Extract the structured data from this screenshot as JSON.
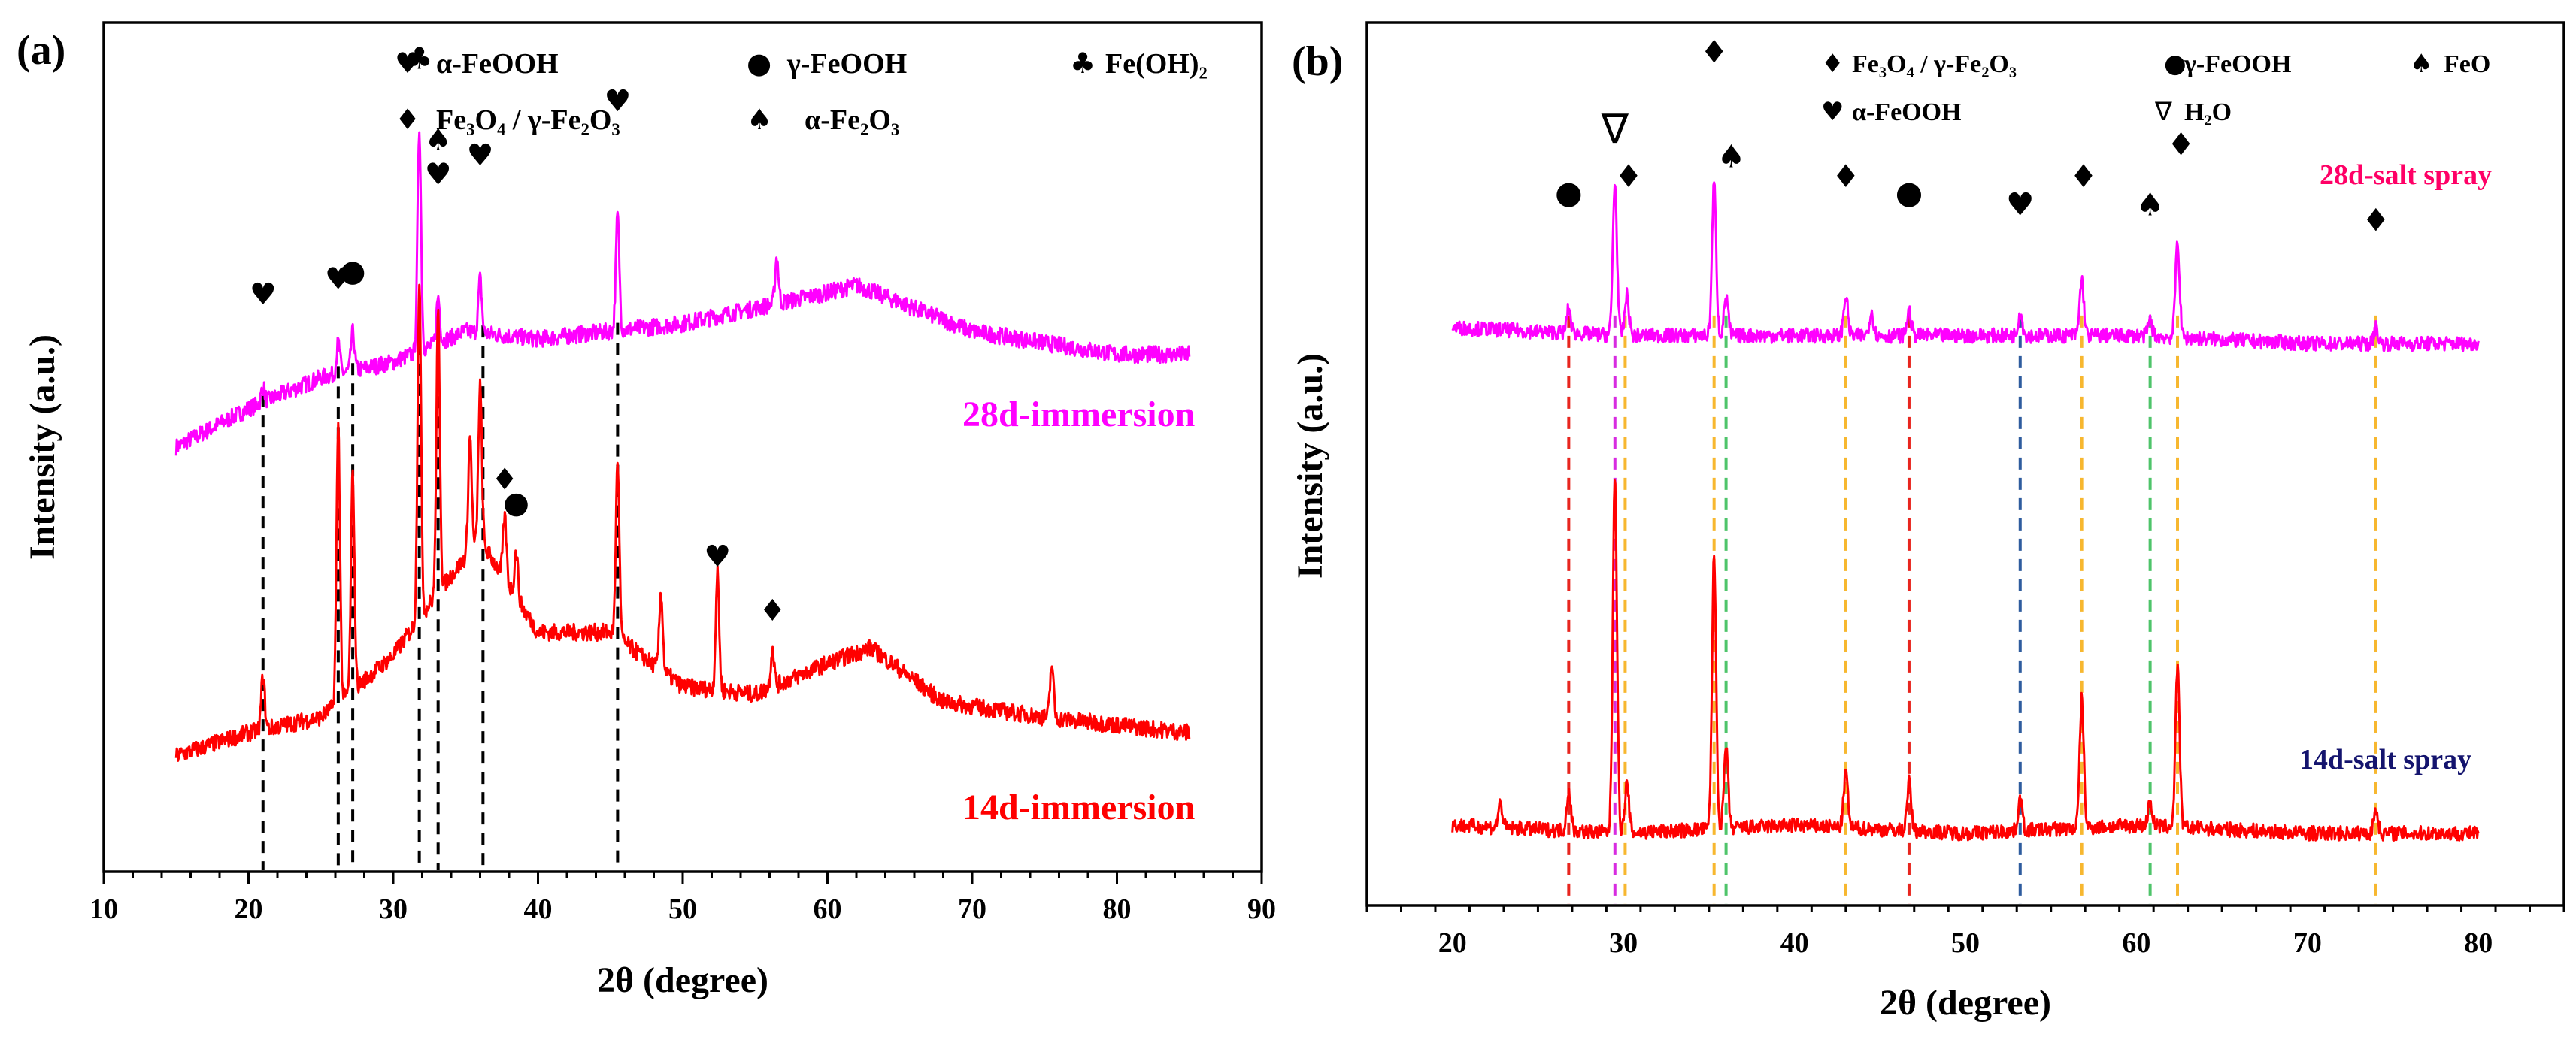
{
  "panels": {
    "a": {
      "label": "(a)",
      "ylabel": "Intensity (a.u.)",
      "xlabel": "2θ (degree)",
      "legend": [
        {
          "symbol": "♥",
          "text": "α-FeOOH"
        },
        {
          "symbol": "●",
          "text": "γ-FeOOH"
        },
        {
          "symbol": "♣",
          "text": "Fe(OH)₂"
        },
        {
          "symbol": "♦",
          "text": "Fe₃O₄ / γ-Fe₂O₃"
        },
        {
          "symbol": "♠",
          "text": "α-Fe₂O₃"
        }
      ],
      "series_labels": [
        "28d-immersion",
        "14d-immersion"
      ]
    },
    "b": {
      "label": "(b)",
      "ylabel": "Intensity (a.u.)",
      "xlabel": "2θ (degree)",
      "legend": [
        {
          "symbol": "♦",
          "text": "Fe₃O₄ / γ-Fe₂O₃"
        },
        {
          "symbol": "●",
          "text": "γ-FeOOH"
        },
        {
          "symbol": "♠",
          "text": "FeO"
        },
        {
          "symbol": "♥",
          "text": "α-FeOOH"
        },
        {
          "symbol": "∇",
          "text": "H₂O"
        }
      ],
      "series_labels": [
        "28d-salt spray",
        "14d-salt spray"
      ]
    }
  },
  "chart_data": [
    {
      "type": "line",
      "panel": "(a)",
      "xlabel": "2θ (degree)",
      "ylabel": "Intensity (a.u.)",
      "xlim": [
        10,
        90
      ],
      "xticks": [
        10,
        20,
        30,
        40,
        50,
        60,
        70,
        80,
        90
      ],
      "x_range": [
        15,
        85
      ],
      "colors": {
        "28d-immersion": "#ff00ff",
        "14d-immersion": "#ff0000"
      },
      "series": [
        {
          "name": "28d-immersion",
          "color": "#ff00ff",
          "baseline": [
            [
              15,
              0.55
            ],
            [
              20,
              0.6
            ],
            [
              25,
              0.64
            ],
            [
              30,
              0.66
            ],
            [
              35,
              0.7
            ],
            [
              40,
              0.69
            ],
            [
              50,
              0.71
            ],
            [
              60,
              0.75
            ],
            [
              62,
              0.76
            ],
            [
              70,
              0.7
            ],
            [
              80,
              0.67
            ],
            [
              85,
              0.67
            ]
          ],
          "peaks": [
            [
              21.0,
              0.02
            ],
            [
              26.2,
              0.04
            ],
            [
              27.2,
              0.05
            ],
            [
              31.8,
              0.29
            ],
            [
              33.1,
              0.06
            ],
            [
              36.0,
              0.07
            ],
            [
              45.5,
              0.15
            ],
            [
              56.5,
              0.06
            ]
          ]
        },
        {
          "name": "14d-immersion",
          "color": "#ff0000",
          "baseline": [
            [
              15,
              0.15
            ],
            [
              20,
              0.18
            ],
            [
              25,
              0.2
            ],
            [
              30,
              0.28
            ],
            [
              33,
              0.36
            ],
            [
              36,
              0.43
            ],
            [
              40,
              0.31
            ],
            [
              45,
              0.31
            ],
            [
              50,
              0.24
            ],
            [
              55,
              0.23
            ],
            [
              60,
              0.27
            ],
            [
              63,
              0.29
            ],
            [
              68,
              0.22
            ],
            [
              75,
              0.2
            ],
            [
              85,
              0.18
            ]
          ],
          "peaks": [
            [
              21.0,
              0.07
            ],
            [
              26.2,
              0.36
            ],
            [
              27.2,
              0.28
            ],
            [
              31.8,
              0.44
            ],
            [
              33.1,
              0.36
            ],
            [
              35.3,
              0.15
            ],
            [
              36.0,
              0.2
            ],
            [
              37.7,
              0.08
            ],
            [
              38.5,
              0.06
            ],
            [
              45.5,
              0.23
            ],
            [
              48.5,
              0.1
            ],
            [
              52.4,
              0.15
            ],
            [
              56.2,
              0.05
            ],
            [
              75.5,
              0.07
            ]
          ]
        }
      ],
      "reference_lines": [
        {
          "x": 21.0,
          "color": "#000000"
        },
        {
          "x": 26.2,
          "color": "#000000"
        },
        {
          "x": 27.2,
          "color": "#000000"
        },
        {
          "x": 31.8,
          "color": "#000000"
        },
        {
          "x": 33.1,
          "color": "#000000"
        },
        {
          "x": 36.2,
          "color": "#000000"
        },
        {
          "x": 45.5,
          "color": "#000000"
        }
      ],
      "annotations": [
        {
          "symbol": "♥",
          "x": 21.0,
          "y": 0.735
        },
        {
          "symbol": "♥",
          "x": 26.2,
          "y": 0.755
        },
        {
          "symbol": "●",
          "x": 27.2,
          "y": 0.765
        },
        {
          "symbol": "♣",
          "x": 31.8,
          "y": 1.04
        },
        {
          "symbol": "♠",
          "x": 33.1,
          "y": 0.935
        },
        {
          "symbol": "♥",
          "x": 33.1,
          "y": 0.89
        },
        {
          "symbol": "♥",
          "x": 36.0,
          "y": 0.915
        },
        {
          "symbol": "♥",
          "x": 45.5,
          "y": 0.985
        },
        {
          "symbol": "♦",
          "x": 37.7,
          "y": 0.495
        },
        {
          "symbol": "●",
          "x": 38.5,
          "y": 0.465
        },
        {
          "symbol": "♥",
          "x": 52.4,
          "y": 0.395
        },
        {
          "symbol": "♦",
          "x": 56.2,
          "y": 0.325
        }
      ]
    },
    {
      "type": "line",
      "panel": "(b)",
      "xlabel": "2θ (degree)",
      "ylabel": "Intensity (a.u.)",
      "xlim": [
        15,
        85
      ],
      "xticks": [
        20,
        30,
        40,
        50,
        60,
        70,
        80
      ],
      "x_range": [
        20,
        80
      ],
      "colors": {
        "28d-salt spray": "#ff00ff",
        "14d-salt spray": "#ff0000"
      },
      "series": [
        {
          "name": "28d-salt spray",
          "color": "#ff00ff",
          "baseline": [
            [
              20,
              0.72
            ],
            [
              30,
              0.71
            ],
            [
              40,
              0.71
            ],
            [
              50,
              0.71
            ],
            [
              60,
              0.71
            ],
            [
              70,
              0.7
            ],
            [
              80,
              0.7
            ]
          ],
          "peaks": [
            [
              26.8,
              0.03
            ],
            [
              29.5,
              0.19
            ],
            [
              30.2,
              0.05
            ],
            [
              35.3,
              0.19
            ],
            [
              36.0,
              0.05
            ],
            [
              43.0,
              0.05
            ],
            [
              44.5,
              0.03
            ],
            [
              46.7,
              0.03
            ],
            [
              53.2,
              0.03
            ],
            [
              56.8,
              0.07
            ],
            [
              60.8,
              0.02
            ],
            [
              62.4,
              0.12
            ],
            [
              74.0,
              0.02
            ]
          ]
        },
        {
          "name": "14d-salt spray",
          "color": "#ff0000",
          "baseline": [
            [
              20,
              0.1
            ],
            [
              30,
              0.09
            ],
            [
              40,
              0.1
            ],
            [
              50,
              0.09
            ],
            [
              60,
              0.1
            ],
            [
              70,
              0.09
            ],
            [
              80,
              0.09
            ]
          ],
          "peaks": [
            [
              22.8,
              0.03
            ],
            [
              26.8,
              0.05
            ],
            [
              29.5,
              0.45
            ],
            [
              30.2,
              0.06
            ],
            [
              35.3,
              0.34
            ],
            [
              36.0,
              0.1
            ],
            [
              43.0,
              0.07
            ],
            [
              46.7,
              0.06
            ],
            [
              53.2,
              0.04
            ],
            [
              56.8,
              0.16
            ],
            [
              60.8,
              0.03
            ],
            [
              62.4,
              0.2
            ],
            [
              74.0,
              0.03
            ]
          ]
        }
      ],
      "reference_lines": [
        {
          "x": 26.8,
          "color": "#e8251e"
        },
        {
          "x": 29.5,
          "color": "#d72be0"
        },
        {
          "x": 30.1,
          "color": "#f7b72f"
        },
        {
          "x": 35.3,
          "color": "#f7b72f"
        },
        {
          "x": 36.0,
          "color": "#4ec46a"
        },
        {
          "x": 43.0,
          "color": "#f7b72f"
        },
        {
          "x": 46.7,
          "color": "#e8251e"
        },
        {
          "x": 53.2,
          "color": "#2e5c9e"
        },
        {
          "x": 56.8,
          "color": "#f7b72f"
        },
        {
          "x": 60.8,
          "color": "#4ec46a"
        },
        {
          "x": 62.4,
          "color": "#f7b72f"
        },
        {
          "x": 74.0,
          "color": "#f7b72f"
        }
      ],
      "annotations": [
        {
          "symbol": "∇",
          "x": 29.5,
          "y": 0.95
        },
        {
          "symbol": "●",
          "x": 26.8,
          "y": 0.875
        },
        {
          "symbol": "♦",
          "x": 30.3,
          "y": 0.895
        },
        {
          "symbol": "♦",
          "x": 35.3,
          "y": 1.05
        },
        {
          "symbol": "♠",
          "x": 36.3,
          "y": 0.92
        },
        {
          "symbol": "♦",
          "x": 43.0,
          "y": 0.895
        },
        {
          "symbol": "●",
          "x": 46.7,
          "y": 0.875
        },
        {
          "symbol": "♥",
          "x": 53.2,
          "y": 0.86
        },
        {
          "symbol": "♦",
          "x": 56.9,
          "y": 0.895
        },
        {
          "symbol": "♠",
          "x": 60.8,
          "y": 0.86
        },
        {
          "symbol": "♦",
          "x": 62.6,
          "y": 0.935
        },
        {
          "symbol": "♦",
          "x": 74.0,
          "y": 0.84
        }
      ]
    }
  ]
}
